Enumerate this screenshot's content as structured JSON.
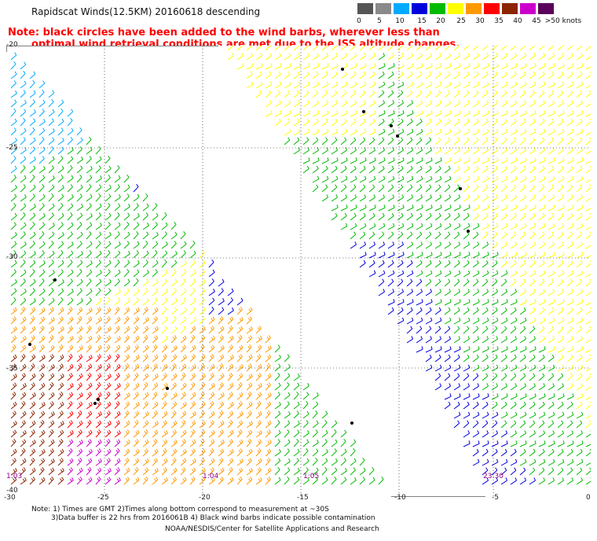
{
  "title": "Rapidscat Winds(12.5KM) 20160618 descending",
  "note_line1": "Note: black circles have been added to the wind barbs, wherever less than",
  "note_line2": "optimal wind retrieval conditions are met due to the ISS altitude changes.",
  "legend": {
    "labels": [
      "0",
      "5",
      "10",
      "15",
      "20",
      "25",
      "30",
      "35",
      "40",
      "45",
      ">50 knots"
    ],
    "colors": [
      "#555555",
      "#8a8a8a",
      "#00aaff",
      "#0000dd",
      "#00bb00",
      "#ffff00",
      "#ff9900",
      "#ff0000",
      "#8b2500",
      "#cc00cc",
      "#5a005a"
    ]
  },
  "axes": {
    "lat_labels": [
      "-20",
      "-25",
      "-30",
      "-35",
      "-40"
    ],
    "lon_labels": [
      "-30",
      "-25",
      "-20",
      "-15",
      "-10",
      "-5",
      "0"
    ]
  },
  "times": [
    "1:03",
    "1:04",
    "1:05",
    "23:30"
  ],
  "footnote_line1": "Note: 1) Times are GMT 2)Times along bottom correspond to measurement at ~30S",
  "footnote_line2": "3)Data buffer is 22 hrs from 2016061B 4) Black wind barbs indicate possible contamination",
  "credit": "NOAA/NESDIS/Center for Satellite Applications and Research"
}
